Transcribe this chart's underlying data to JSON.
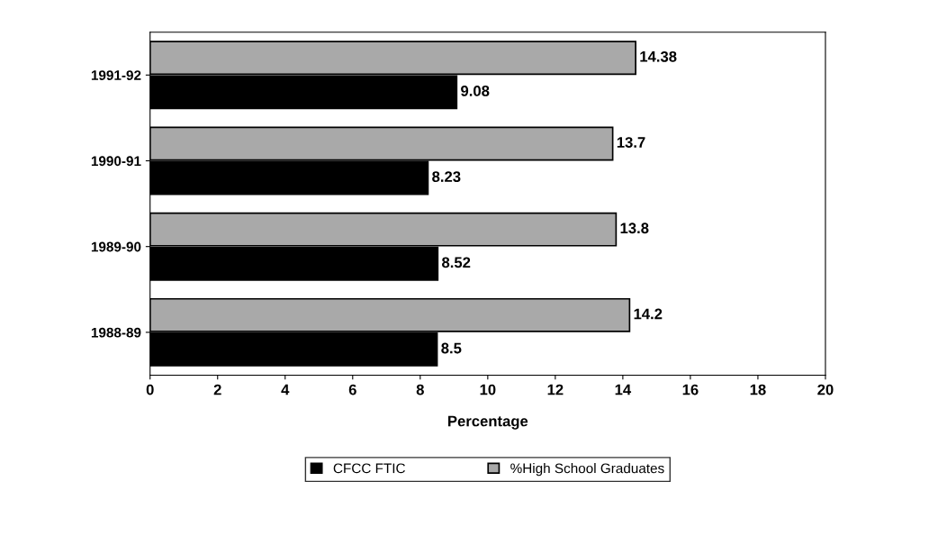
{
  "chart_data": {
    "type": "bar",
    "orientation": "horizontal",
    "categories": [
      "1991-92",
      "1990-91",
      "1989-90",
      "1988-89"
    ],
    "series": [
      {
        "name": "CFCC FTIC",
        "color": "#000000",
        "values": [
          9.08,
          8.23,
          8.52,
          8.5
        ]
      },
      {
        "name": "%High School Graduates",
        "color": "#a9a9a9",
        "values": [
          14.38,
          13.7,
          13.8,
          14.2
        ]
      }
    ],
    "xlabel": "Percentage",
    "xlim": [
      0,
      20
    ],
    "xticks": [
      0,
      2,
      4,
      6,
      8,
      10,
      12,
      14,
      16,
      18,
      20
    ],
    "data_labels": true,
    "grid": false,
    "legend": "bottom"
  }
}
